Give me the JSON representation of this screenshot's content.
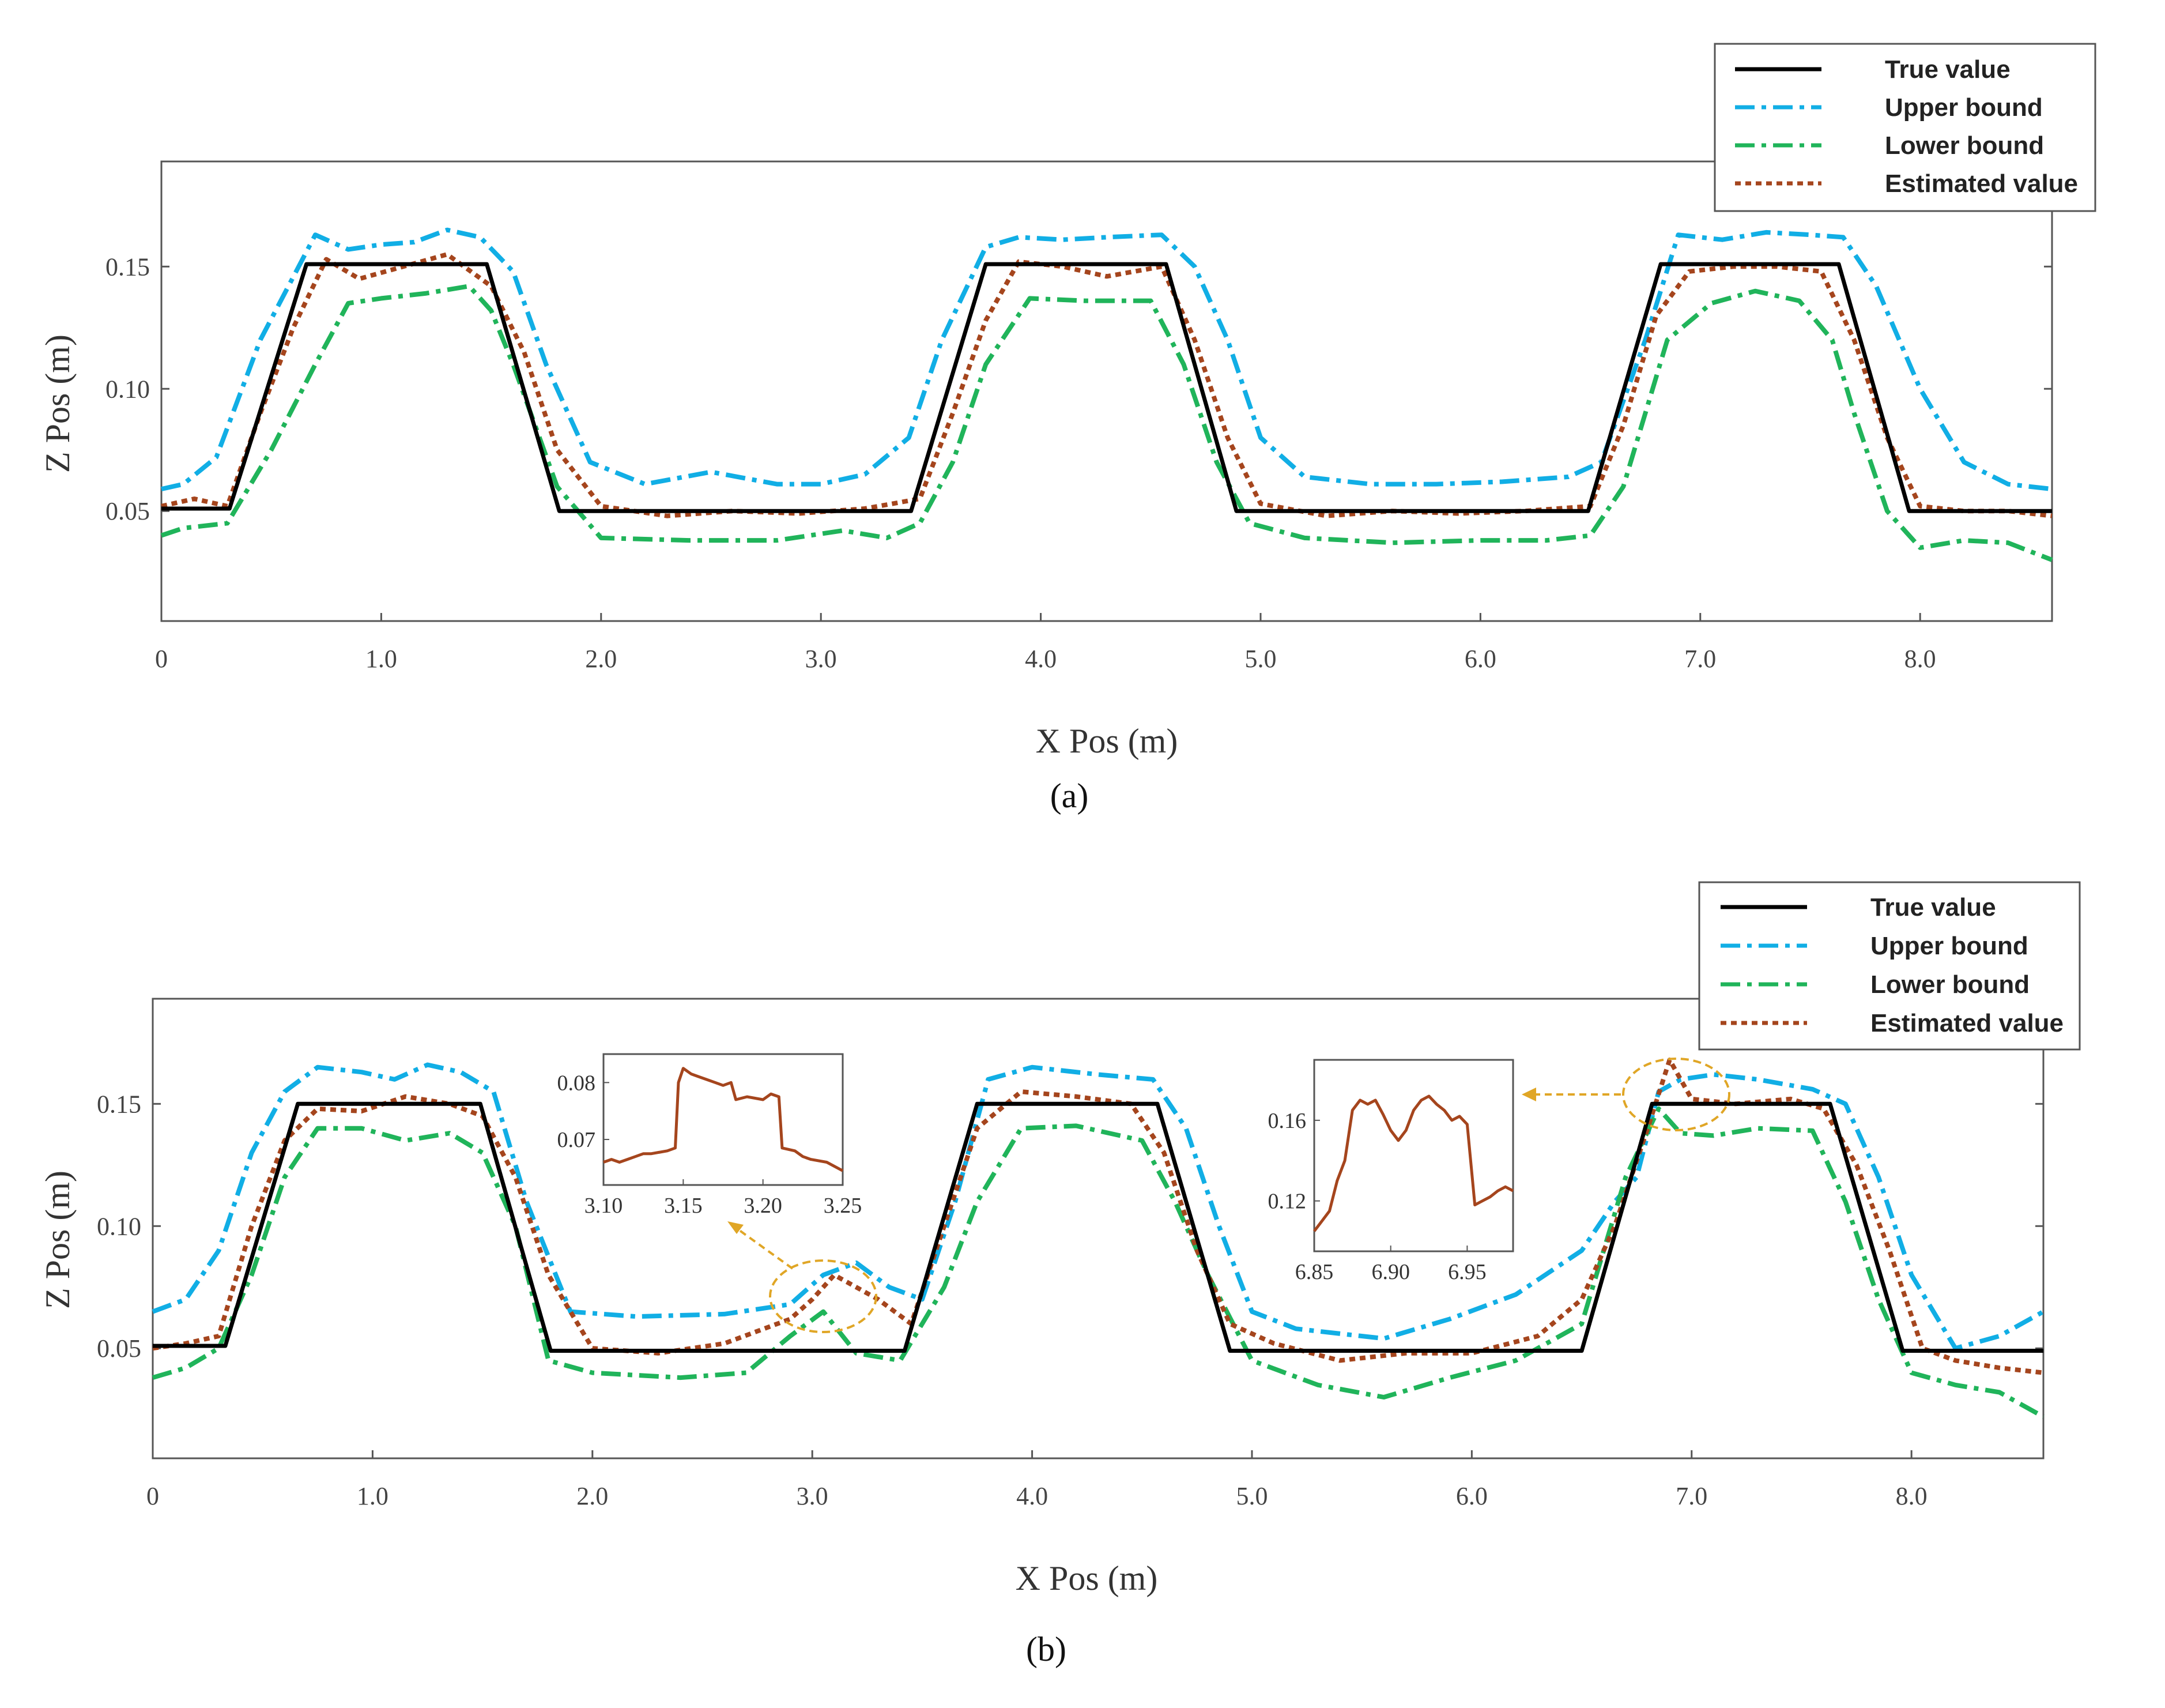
{
  "chart_data": [
    {
      "type": "line",
      "id": "a",
      "caption": "(a)",
      "xlabel": "X Pos (m)",
      "ylabel": "Z Pos (m)",
      "xlim": [
        0,
        8.6
      ],
      "ylim": [
        0.005,
        0.193
      ],
      "xticks": [
        0,
        1.0,
        2.0,
        3.0,
        4.0,
        5.0,
        6.0,
        7.0,
        8.0
      ],
      "xtick_labels": [
        "0",
        "1.0",
        "2.0",
        "3.0",
        "4.0",
        "5.0",
        "6.0",
        "7.0",
        "8.0"
      ],
      "yticks": [
        0.05,
        0.1,
        0.15
      ],
      "ytick_labels": [
        "0.05",
        "0.10",
        "0.15"
      ],
      "legend": [
        "True value",
        "Upper bound",
        "Lower bound",
        "Estimated value"
      ],
      "series": [
        {
          "name": "True value",
          "color": "#000000",
          "style": "solid",
          "x": [
            0,
            0.31,
            0.66,
            1.48,
            1.81,
            3.41,
            3.75,
            4.57,
            4.89,
            6.49,
            6.82,
            7.63,
            7.95,
            8.6
          ],
          "y": [
            0.051,
            0.051,
            0.151,
            0.151,
            0.05,
            0.05,
            0.151,
            0.151,
            0.05,
            0.05,
            0.151,
            0.151,
            0.05,
            0.05
          ]
        },
        {
          "name": "Upper bound",
          "color": "#11aee5",
          "style": "dashdot",
          "x": [
            0,
            0.1,
            0.25,
            0.45,
            0.7,
            0.85,
            1.0,
            1.15,
            1.3,
            1.45,
            1.6,
            1.75,
            1.95,
            2.2,
            2.5,
            2.8,
            3.0,
            3.2,
            3.4,
            3.55,
            3.75,
            3.9,
            4.1,
            4.3,
            4.55,
            4.7,
            4.85,
            5.0,
            5.2,
            5.5,
            5.8,
            6.1,
            6.4,
            6.55,
            6.75,
            6.9,
            7.1,
            7.3,
            7.5,
            7.65,
            7.8,
            8.0,
            8.2,
            8.4,
            8.6
          ],
          "y": [
            0.059,
            0.061,
            0.072,
            0.12,
            0.163,
            0.157,
            0.159,
            0.16,
            0.165,
            0.162,
            0.148,
            0.11,
            0.07,
            0.061,
            0.066,
            0.061,
            0.061,
            0.065,
            0.08,
            0.12,
            0.158,
            0.162,
            0.161,
            0.162,
            0.163,
            0.15,
            0.12,
            0.08,
            0.064,
            0.061,
            0.061,
            0.062,
            0.064,
            0.07,
            0.12,
            0.163,
            0.161,
            0.164,
            0.163,
            0.162,
            0.142,
            0.1,
            0.07,
            0.061,
            0.059
          ]
        },
        {
          "name": "Lower bound",
          "color": "#20b45a",
          "style": "dashdot",
          "x": [
            0,
            0.1,
            0.3,
            0.5,
            0.7,
            0.85,
            1.0,
            1.2,
            1.4,
            1.5,
            1.6,
            1.8,
            2.0,
            2.4,
            2.8,
            3.1,
            3.3,
            3.45,
            3.6,
            3.75,
            3.95,
            4.2,
            4.5,
            4.65,
            4.8,
            4.95,
            5.2,
            5.6,
            6.0,
            6.3,
            6.5,
            6.65,
            6.85,
            7.05,
            7.25,
            7.45,
            7.6,
            7.7,
            7.85,
            8.0,
            8.2,
            8.4,
            8.6
          ],
          "y": [
            0.04,
            0.043,
            0.045,
            0.075,
            0.11,
            0.135,
            0.137,
            0.139,
            0.142,
            0.132,
            0.11,
            0.06,
            0.039,
            0.038,
            0.038,
            0.042,
            0.039,
            0.045,
            0.07,
            0.11,
            0.137,
            0.136,
            0.136,
            0.11,
            0.07,
            0.045,
            0.039,
            0.037,
            0.038,
            0.038,
            0.04,
            0.06,
            0.12,
            0.135,
            0.14,
            0.136,
            0.12,
            0.09,
            0.05,
            0.035,
            0.038,
            0.037,
            0.03
          ]
        },
        {
          "name": "Estimated value",
          "color": "#a5451d",
          "style": "dotted",
          "x": [
            0,
            0.15,
            0.3,
            0.45,
            0.6,
            0.75,
            0.9,
            1.1,
            1.3,
            1.5,
            1.65,
            1.8,
            2.0,
            2.3,
            2.6,
            2.9,
            3.2,
            3.45,
            3.6,
            3.75,
            3.9,
            4.1,
            4.3,
            4.55,
            4.7,
            4.85,
            5.0,
            5.3,
            5.6,
            5.9,
            6.2,
            6.5,
            6.65,
            6.8,
            6.95,
            7.15,
            7.35,
            7.55,
            7.7,
            7.85,
            8.0,
            8.2,
            8.4,
            8.6
          ],
          "y": [
            0.052,
            0.055,
            0.052,
            0.09,
            0.125,
            0.153,
            0.145,
            0.15,
            0.155,
            0.142,
            0.115,
            0.075,
            0.052,
            0.048,
            0.05,
            0.049,
            0.051,
            0.055,
            0.09,
            0.128,
            0.152,
            0.15,
            0.146,
            0.15,
            0.12,
            0.08,
            0.053,
            0.048,
            0.05,
            0.049,
            0.05,
            0.052,
            0.085,
            0.13,
            0.148,
            0.15,
            0.15,
            0.148,
            0.12,
            0.08,
            0.052,
            0.05,
            0.05,
            0.048
          ]
        }
      ]
    },
    {
      "type": "line",
      "id": "b",
      "caption": "(b)",
      "xlabel": "X Pos (m)",
      "ylabel": "Z Pos (m)",
      "xlim": [
        0,
        8.6
      ],
      "ylim": [
        0.005,
        0.193
      ],
      "xticks": [
        0,
        1.0,
        2.0,
        3.0,
        4.0,
        5.0,
        6.0,
        7.0,
        8.0
      ],
      "xtick_labels": [
        "0",
        "1.0",
        "2.0",
        "3.0",
        "4.0",
        "5.0",
        "6.0",
        "7.0",
        "8.0"
      ],
      "yticks": [
        0.05,
        0.1,
        0.15
      ],
      "ytick_labels": [
        "0.05",
        "0.10",
        "0.15"
      ],
      "legend": [
        "True value",
        "Upper bound",
        "Lower bound",
        "Estimated value"
      ],
      "series": [
        {
          "name": "True value",
          "color": "#000000",
          "style": "solid",
          "x": [
            0,
            0.33,
            0.66,
            1.49,
            1.81,
            3.42,
            3.75,
            4.57,
            4.9,
            6.5,
            6.82,
            7.63,
            7.96,
            8.6
          ],
          "y": [
            0.051,
            0.051,
            0.15,
            0.15,
            0.049,
            0.049,
            0.15,
            0.15,
            0.049,
            0.049,
            0.15,
            0.15,
            0.049,
            0.049
          ]
        },
        {
          "name": "Upper bound",
          "color": "#11aee5",
          "style": "dashdot",
          "x": [
            0,
            0.15,
            0.3,
            0.45,
            0.6,
            0.75,
            0.95,
            1.1,
            1.25,
            1.4,
            1.55,
            1.7,
            1.9,
            2.2,
            2.6,
            2.9,
            3.05,
            3.2,
            3.35,
            3.5,
            3.65,
            3.8,
            4.0,
            4.3,
            4.55,
            4.7,
            4.85,
            5.0,
            5.2,
            5.6,
            5.9,
            6.2,
            6.5,
            6.65,
            6.75,
            6.85,
            6.95,
            7.1,
            7.3,
            7.55,
            7.7,
            7.85,
            8.0,
            8.2,
            8.4,
            8.6
          ],
          "y": [
            0.065,
            0.07,
            0.09,
            0.13,
            0.155,
            0.165,
            0.163,
            0.16,
            0.166,
            0.163,
            0.155,
            0.11,
            0.065,
            0.063,
            0.064,
            0.068,
            0.08,
            0.085,
            0.075,
            0.07,
            0.11,
            0.16,
            0.165,
            0.162,
            0.16,
            0.14,
            0.1,
            0.065,
            0.058,
            0.054,
            0.062,
            0.072,
            0.09,
            0.11,
            0.12,
            0.155,
            0.16,
            0.162,
            0.16,
            0.156,
            0.15,
            0.12,
            0.08,
            0.05,
            0.055,
            0.065
          ]
        },
        {
          "name": "Lower bound",
          "color": "#20b45a",
          "style": "dashdot",
          "x": [
            0,
            0.15,
            0.3,
            0.45,
            0.6,
            0.75,
            0.95,
            1.15,
            1.35,
            1.5,
            1.65,
            1.8,
            2.0,
            2.4,
            2.7,
            2.9,
            3.05,
            3.2,
            3.4,
            3.6,
            3.75,
            3.95,
            4.2,
            4.5,
            4.65,
            4.8,
            5.0,
            5.3,
            5.6,
            5.9,
            6.2,
            6.5,
            6.7,
            6.85,
            6.95,
            7.1,
            7.3,
            7.55,
            7.7,
            7.85,
            8.0,
            8.2,
            8.4,
            8.6
          ],
          "y": [
            0.038,
            0.042,
            0.05,
            0.08,
            0.12,
            0.14,
            0.14,
            0.135,
            0.138,
            0.13,
            0.1,
            0.045,
            0.04,
            0.038,
            0.04,
            0.055,
            0.065,
            0.048,
            0.045,
            0.075,
            0.11,
            0.14,
            0.141,
            0.135,
            0.11,
            0.08,
            0.045,
            0.035,
            0.03,
            0.038,
            0.045,
            0.06,
            0.12,
            0.148,
            0.138,
            0.137,
            0.14,
            0.139,
            0.11,
            0.07,
            0.04,
            0.035,
            0.032,
            0.022
          ]
        },
        {
          "name": "Estimated value",
          "color": "#a5451d",
          "style": "dotted",
          "x": [
            0,
            0.15,
            0.3,
            0.45,
            0.6,
            0.75,
            0.95,
            1.15,
            1.35,
            1.5,
            1.65,
            1.8,
            2.0,
            2.3,
            2.6,
            2.9,
            3.0,
            3.1,
            3.2,
            3.3,
            3.45,
            3.6,
            3.75,
            3.95,
            4.2,
            4.45,
            4.6,
            4.75,
            4.9,
            5.1,
            5.4,
            5.7,
            6.0,
            6.3,
            6.5,
            6.65,
            6.8,
            6.9,
            7.0,
            7.2,
            7.45,
            7.6,
            7.75,
            7.9,
            8.05,
            8.2,
            8.4,
            8.6
          ],
          "y": [
            0.05,
            0.052,
            0.055,
            0.1,
            0.135,
            0.148,
            0.147,
            0.153,
            0.15,
            0.145,
            0.12,
            0.08,
            0.05,
            0.048,
            0.052,
            0.062,
            0.07,
            0.08,
            0.075,
            0.07,
            0.06,
            0.1,
            0.14,
            0.155,
            0.153,
            0.15,
            0.13,
            0.09,
            0.06,
            0.052,
            0.045,
            0.048,
            0.048,
            0.055,
            0.07,
            0.1,
            0.14,
            0.168,
            0.152,
            0.15,
            0.152,
            0.148,
            0.125,
            0.09,
            0.05,
            0.045,
            0.042,
            0.04
          ]
        }
      ],
      "insets": [
        {
          "name": "inset-left",
          "color": "#a5451d",
          "xlim": [
            3.1,
            3.25
          ],
          "ylim": [
            0.062,
            0.085
          ],
          "xticks": [
            3.1,
            3.15,
            3.2,
            3.25
          ],
          "xtick_labels": [
            "3.10",
            "3.15",
            "3.20",
            "3.25"
          ],
          "yticks": [
            0.07,
            0.08
          ],
          "ytick_labels": [
            "0.07",
            "0.08"
          ],
          "x": [
            3.1,
            3.105,
            3.11,
            3.115,
            3.12,
            3.125,
            3.13,
            3.14,
            3.145,
            3.147,
            3.15,
            3.155,
            3.16,
            3.165,
            3.17,
            3.175,
            3.18,
            3.183,
            3.19,
            3.2,
            3.205,
            3.21,
            3.212,
            3.22,
            3.225,
            3.23,
            3.24,
            3.25
          ],
          "y": [
            0.066,
            0.0665,
            0.066,
            0.0665,
            0.067,
            0.0675,
            0.0675,
            0.068,
            0.0685,
            0.08,
            0.0825,
            0.0815,
            0.081,
            0.0805,
            0.08,
            0.0795,
            0.08,
            0.077,
            0.0775,
            0.077,
            0.078,
            0.0775,
            0.0685,
            0.068,
            0.067,
            0.0665,
            0.066,
            0.0645
          ]
        },
        {
          "name": "inset-right",
          "color": "#a5451d",
          "xlim": [
            6.85,
            6.98
          ],
          "ylim": [
            0.095,
            0.19
          ],
          "xticks": [
            6.85,
            6.9,
            6.95
          ],
          "xtick_labels": [
            "6.85",
            "6.90",
            "6.95"
          ],
          "yticks": [
            0.12,
            0.16
          ],
          "ytick_labels": [
            "0.12",
            "0.16"
          ],
          "x": [
            6.85,
            6.855,
            6.86,
            6.865,
            6.87,
            6.875,
            6.88,
            6.885,
            6.89,
            6.895,
            6.9,
            6.905,
            6.91,
            6.915,
            6.92,
            6.925,
            6.93,
            6.935,
            6.94,
            6.945,
            6.95,
            6.955,
            6.96,
            6.965,
            6.97,
            6.975,
            6.98
          ],
          "y": [
            0.105,
            0.11,
            0.115,
            0.13,
            0.14,
            0.165,
            0.17,
            0.168,
            0.17,
            0.163,
            0.155,
            0.15,
            0.155,
            0.165,
            0.17,
            0.172,
            0.168,
            0.165,
            0.16,
            0.162,
            0.158,
            0.118,
            0.12,
            0.122,
            0.125,
            0.127,
            0.125
          ]
        }
      ]
    }
  ]
}
